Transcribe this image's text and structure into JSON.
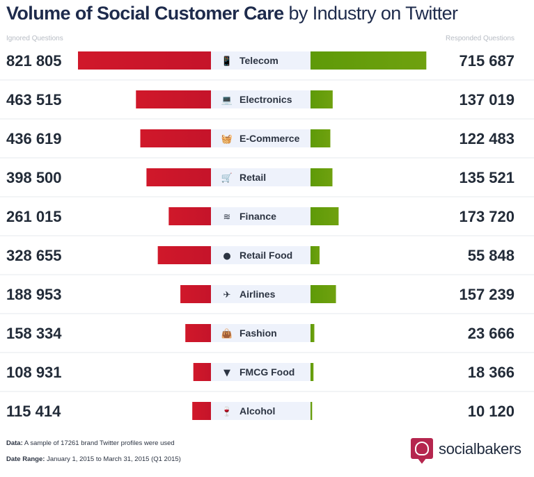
{
  "header": {
    "title_bold": "Volume of Social Customer Care",
    "title_light": "by Industry on Twitter"
  },
  "subheaders": {
    "left": "Ignored Questions",
    "right": "Responded Questions"
  },
  "colors": {
    "ignored": "#d0182a",
    "responded": "#6fa10f",
    "label_bg": "#eef2fb",
    "title": "#1e2b4c"
  },
  "chart_data": {
    "type": "bar",
    "layout": "butterfly",
    "categories": [
      "Telecom",
      "Electronics",
      "E-Commerce",
      "Retail",
      "Finance",
      "Retail Food",
      "Airlines",
      "Fashion",
      "FMCG Food",
      "Alcohol"
    ],
    "icons": [
      "mobile-phone-icon",
      "laptop-icon",
      "shopping-basket-icon",
      "shopping-cart-icon",
      "money-bills-icon",
      "plate-cutlery-icon",
      "airplane-icon",
      "handbag-icon",
      "ice-cream-icon",
      "wine-glass-icon"
    ],
    "series": [
      {
        "name": "Ignored Questions",
        "values": [
          821805,
          463515,
          436619,
          398500,
          261015,
          328655,
          188953,
          158334,
          108931,
          115414
        ],
        "labels": [
          "821 805",
          "463 515",
          "436 619",
          "398 500",
          "261 015",
          "328 655",
          "188 953",
          "158 334",
          "108 931",
          "115 414"
        ]
      },
      {
        "name": "Responded Questions",
        "values": [
          715687,
          137019,
          122483,
          135521,
          173720,
          55848,
          157239,
          23666,
          18366,
          10120
        ],
        "labels": [
          "715 687",
          "137 019",
          "122 483",
          "135 521",
          "173 720",
          "55 848",
          "157 239",
          "23 666",
          "18 366",
          "10 120"
        ]
      }
    ]
  },
  "footer": {
    "data_label": "Data:",
    "data_text": "A sample of 17261 brand Twitter profiles were used",
    "range_label": "Date Range:",
    "range_text": "January 1, 2015 to March 31, 2015 (Q1 2015)"
  },
  "brand": {
    "name": "socialbakers"
  }
}
